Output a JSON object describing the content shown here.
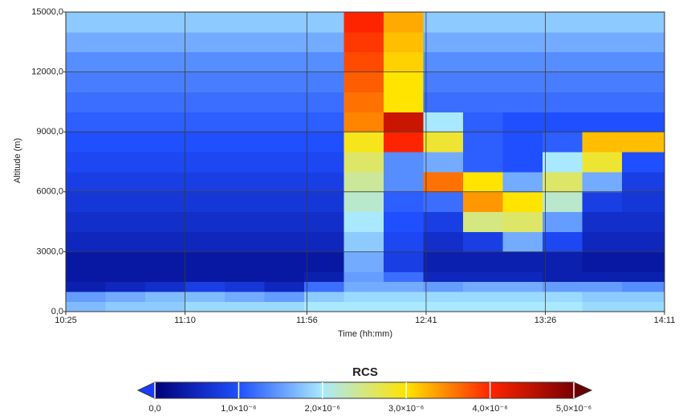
{
  "chart_data": {
    "type": "heatmap",
    "x_label": "Time (hh:mm)",
    "y_label": "Altitude (m)",
    "colorbar_title": "RCS",
    "xlim": [
      625,
      851
    ],
    "xticks": [
      {
        "value": 625,
        "label": "10:25"
      },
      {
        "value": 670,
        "label": "11:10"
      },
      {
        "value": 716,
        "label": "11:56"
      },
      {
        "value": 761,
        "label": "12:41"
      },
      {
        "value": 806,
        "label": "13:26"
      },
      {
        "value": 851,
        "label": "14:11"
      }
    ],
    "ylim": [
      0,
      15000
    ],
    "yticks": [
      {
        "value": 0,
        "label": "0,0"
      },
      {
        "value": 3000,
        "label": "3000,0"
      },
      {
        "value": 6000,
        "label": "6000,0"
      },
      {
        "value": 9000,
        "label": "9000,0"
      },
      {
        "value": 12000,
        "label": "12000,0"
      },
      {
        "value": 15000,
        "label": "15000,0"
      }
    ],
    "grid": true,
    "clim": [
      0,
      5e-06
    ],
    "cticks": [
      {
        "value": 0,
        "label": "0,0"
      },
      {
        "value": 1e-06,
        "label": "1,0×10⁻⁶"
      },
      {
        "value": 2e-06,
        "label": "2,0×10⁻⁶"
      },
      {
        "value": 3e-06,
        "label": "3,0×10⁻⁶"
      },
      {
        "value": 4e-06,
        "label": "4,0×10⁻⁶"
      },
      {
        "value": 5e-06,
        "label": "5,0×10⁻⁶"
      }
    ],
    "colormap": [
      "#00007a",
      "#1f4fff",
      "#a9e9ff",
      "#ffe400",
      "#ff2400",
      "#7a0000"
    ],
    "x_edges": [
      625,
      640,
      655,
      670,
      685,
      700,
      715,
      730,
      745,
      760,
      775,
      790,
      805,
      820,
      835,
      851
    ],
    "y_edges": [
      0,
      500,
      1000,
      1500,
      2000,
      3000,
      4000,
      5000,
      6000,
      7000,
      8000,
      9000,
      10000,
      11000,
      12000,
      13000,
      14000,
      15000
    ],
    "z": [
      [
        1.7e-06,
        1.8e-06,
        1.8e-06,
        1.9e-06,
        1.9e-06,
        1.9e-06,
        2e-06,
        2e-06,
        2e-06,
        2e-06,
        2e-06,
        2e-06,
        2e-06,
        1.9e-06,
        1.9e-06
      ],
      [
        1.5e-06,
        1.6e-06,
        1.7e-06,
        1.7e-06,
        1.6e-06,
        1.5e-06,
        1.8e-06,
        1.9e-06,
        1.9e-06,
        1.9e-06,
        1.9e-06,
        1.9e-06,
        1.9e-06,
        1.8e-06,
        1.8e-06
      ],
      [
        4e-07,
        5e-07,
        6e-07,
        8e-07,
        7e-07,
        5e-07,
        1.2e-06,
        1.6e-06,
        1.6e-06,
        1.5e-06,
        1.6e-06,
        1.6e-06,
        1.5e-06,
        1.5e-06,
        1.4e-06
      ],
      [
        3e-07,
        3e-07,
        3e-07,
        3e-07,
        3e-07,
        3e-07,
        4e-07,
        1.5e-06,
        1.2e-06,
        5e-07,
        5e-07,
        5e-07,
        4e-07,
        4e-07,
        4e-07
      ],
      [
        3e-07,
        3e-07,
        3e-07,
        3e-07,
        3e-07,
        3e-07,
        3e-07,
        1.6e-06,
        8e-07,
        4e-07,
        4e-07,
        4e-07,
        4e-07,
        3e-07,
        3e-07
      ],
      [
        5e-07,
        5e-07,
        5e-07,
        5e-07,
        5e-07,
        5e-07,
        5e-07,
        1.8e-06,
        9e-07,
        6e-07,
        8e-07,
        1.6e-06,
        9e-07,
        5e-07,
        5e-07
      ],
      [
        6e-07,
        6e-07,
        6e-07,
        6e-07,
        6e-07,
        6e-07,
        6e-07,
        2e-06,
        1e-06,
        8e-07,
        2.5e-06,
        2.6e-06,
        1.5e-06,
        6e-07,
        6e-07
      ],
      [
        7e-07,
        7e-07,
        7e-07,
        7e-07,
        7e-07,
        7e-07,
        7e-07,
        2.2e-06,
        1.1e-06,
        1.2e-06,
        3.4e-06,
        3e-06,
        2.2e-06,
        8e-07,
        7e-07
      ],
      [
        8e-07,
        8e-07,
        8e-07,
        8e-07,
        8e-07,
        8e-07,
        8e-07,
        2.4e-06,
        1.4e-06,
        3.6e-06,
        3e-06,
        1.6e-06,
        2.6e-06,
        1.6e-06,
        8e-07
      ],
      [
        9e-07,
        9e-07,
        9e-07,
        9e-07,
        9e-07,
        9e-07,
        9e-07,
        2.6e-06,
        1.4e-06,
        1.6e-06,
        1.1e-06,
        1e-06,
        2e-06,
        2.8e-06,
        1e-06
      ],
      [
        1e-06,
        1e-06,
        1e-06,
        1e-06,
        1e-06,
        1e-06,
        1e-06,
        2.9e-06,
        4e-06,
        2.8e-06,
        1.1e-06,
        1e-06,
        1.1e-06,
        3.2e-06,
        3.2e-06
      ],
      [
        1.1e-06,
        1.1e-06,
        1.1e-06,
        1.1e-06,
        1.1e-06,
        1.1e-06,
        1.1e-06,
        3.5e-06,
        4.4e-06,
        2e-06,
        1.1e-06,
        1e-06,
        1e-06,
        1e-06,
        1e-06
      ],
      [
        1.2e-06,
        1.2e-06,
        1.2e-06,
        1.2e-06,
        1.2e-06,
        1.2e-06,
        1.2e-06,
        3.6e-06,
        3e-06,
        1.2e-06,
        1.2e-06,
        1.2e-06,
        1.2e-06,
        1.2e-06,
        1.2e-06
      ],
      [
        1.3e-06,
        1.3e-06,
        1.3e-06,
        1.3e-06,
        1.3e-06,
        1.3e-06,
        1.3e-06,
        3.7e-06,
        3e-06,
        1.3e-06,
        1.3e-06,
        1.3e-06,
        1.3e-06,
        1.3e-06,
        1.3e-06
      ],
      [
        1.4e-06,
        1.4e-06,
        1.4e-06,
        1.4e-06,
        1.4e-06,
        1.4e-06,
        1.4e-06,
        3.8e-06,
        3.1e-06,
        1.4e-06,
        1.4e-06,
        1.4e-06,
        1.4e-06,
        1.4e-06,
        1.4e-06
      ],
      [
        1.6e-06,
        1.6e-06,
        1.6e-06,
        1.6e-06,
        1.6e-06,
        1.6e-06,
        1.6e-06,
        3.9e-06,
        3.2e-06,
        1.6e-06,
        1.6e-06,
        1.6e-06,
        1.6e-06,
        1.6e-06,
        1.6e-06
      ],
      [
        1.8e-06,
        1.8e-06,
        1.8e-06,
        1.8e-06,
        1.8e-06,
        1.8e-06,
        1.8e-06,
        4e-06,
        3.3e-06,
        1.8e-06,
        1.8e-06,
        1.8e-06,
        1.8e-06,
        1.8e-06,
        1.8e-06
      ]
    ]
  }
}
